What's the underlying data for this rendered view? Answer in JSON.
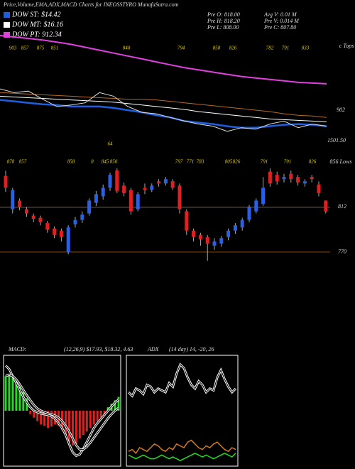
{
  "header": {
    "title": "Price,Volume,EMA,ADX,MACD Charts for INEOSSTYRO MunafaSutra.com"
  },
  "legend": [
    {
      "label": "DOW ST: $14.42",
      "color": "#1e5fe0"
    },
    {
      "label": "DOW MT: $16.16",
      "color": "#ffffff"
    },
    {
      "label": "DOW PT: 912.34",
      "color": "#e040e0"
    }
  ],
  "stats": [
    "Pre  O: 818.00",
    "Avg V: 0.01 M",
    "Pre  H: 818.20",
    "Pre  V: 0.014 M",
    "Pre  L: 808.00",
    "Pre  C: 807.80"
  ],
  "chart_data": [
    {
      "type": "line",
      "ylim": [
        760,
        930
      ],
      "annotations": [
        "903",
        "857",
        "875",
        "851",
        "840",
        "794",
        "858",
        "826",
        "782",
        "791",
        "833",
        "64",
        "902",
        "1501.50",
        "c Tops"
      ],
      "series": [
        {
          "color": "#e040e0",
          "width": 2,
          "values": [
            930,
            928,
            926,
            924,
            921,
            918,
            914,
            910,
            906,
            902,
            898,
            894,
            890,
            886,
            883,
            880,
            877,
            874,
            872,
            870,
            868,
            866,
            865,
            864
          ]
        },
        {
          "color": "#b86a1e",
          "width": 1,
          "values": [
            852,
            851,
            850,
            849,
            848,
            847,
            846,
            845,
            844,
            843,
            843,
            842,
            840,
            838,
            836,
            834,
            832,
            830,
            828,
            826,
            823,
            821,
            820,
            818
          ]
        },
        {
          "color": "#ffffff",
          "width": 1,
          "values": [
            847,
            846,
            845,
            844,
            843,
            842,
            841,
            840,
            839,
            837,
            835,
            833,
            831,
            829,
            826,
            824,
            822,
            820,
            818,
            816,
            815,
            814,
            813,
            812
          ]
        },
        {
          "color": "#1e5fe0",
          "width": 2.5,
          "values": [
            842,
            840,
            838,
            836,
            835,
            833,
            833,
            833,
            831,
            828,
            825,
            821,
            818,
            813,
            811,
            809,
            806,
            804,
            804,
            806,
            808,
            809,
            808,
            806
          ]
        },
        {
          "color": "#dddddd",
          "width": 1,
          "values": [
            857,
            852,
            854,
            843,
            833,
            835,
            838,
            852,
            847,
            833,
            825,
            823,
            818,
            813,
            809,
            806,
            799,
            804,
            802,
            809,
            813,
            804,
            809,
            806
          ]
        }
      ]
    },
    {
      "type": "candlestick",
      "ylim": [
        750,
        856
      ],
      "yticks": [
        812,
        770
      ],
      "up_color": "#2a5fe8",
      "down_color": "#e02020",
      "annotations": [
        "878",
        "857",
        "858",
        "8",
        "845",
        "850",
        "797",
        "771",
        "783",
        "805",
        "826",
        "791",
        "791",
        "826",
        "856 Lows"
      ],
      "open": [
        841,
        810,
        818,
        810,
        804,
        802,
        797,
        792,
        790,
        770,
        796,
        800,
        806,
        816,
        822,
        830,
        846,
        832,
        828,
        810,
        830,
        828,
        836,
        834,
        836,
        832,
        808,
        790,
        786,
        784,
        776,
        778,
        784,
        790,
        793,
        800,
        808,
        815,
        845,
        842,
        838,
        843,
        840,
        834,
        840,
        833,
        818
      ],
      "high": [
        846,
        830,
        820,
        812,
        806,
        804,
        799,
        794,
        792,
        795,
        803,
        808,
        820,
        827,
        833,
        844,
        848,
        835,
        830,
        826,
        834,
        834,
        838,
        840,
        838,
        834,
        810,
        792,
        788,
        786,
        783,
        785,
        792,
        797,
        802,
        814,
        820,
        840,
        848,
        845,
        843,
        846,
        842,
        838,
        842,
        836,
        818.2
      ],
      "low": [
        826,
        806,
        809,
        803,
        798,
        795,
        788,
        783,
        780,
        768,
        793,
        797,
        804,
        813,
        819,
        827,
        825,
        822,
        805,
        808,
        824,
        826,
        831,
        832,
        828,
        806,
        786,
        780,
        776,
        762,
        772,
        775,
        781,
        787,
        790,
        798,
        806,
        813,
        831,
        833,
        835,
        835,
        832,
        831,
        835,
        822,
        806
      ],
      "close": [
        830,
        828,
        812,
        806,
        801,
        798,
        791,
        786,
        784,
        793,
        800,
        805,
        818,
        824,
        830,
        842,
        827,
        825,
        808,
        824,
        828,
        832,
        834,
        838,
        830,
        810,
        790,
        784,
        782,
        778,
        780,
        783,
        790,
        795,
        800,
        812,
        818,
        830,
        834,
        836,
        840,
        838,
        835,
        836,
        838,
        825,
        807.8
      ]
    },
    {
      "type": "macd",
      "title": "MACD:",
      "subtitle": "(12,26,9) $17.93, $18.32, 4.63",
      "ylim": [
        -8,
        8
      ],
      "histogram": [
        5,
        5.2,
        4.8,
        4,
        3.5,
        2.8,
        1.8,
        -0.5,
        -1,
        -1.5,
        -2,
        -2.2,
        -2.5,
        -2.3,
        -2,
        -2.2,
        -2.8,
        -3.5,
        -4.5,
        -5,
        -4.8,
        -4,
        -3.5,
        -3,
        -2.5,
        -2,
        -1.5,
        -1,
        -0.5,
        0.5,
        1,
        1.5,
        2
      ],
      "macd": [
        6.5,
        6,
        5,
        4,
        3,
        2,
        1.2,
        0.5,
        0,
        -0.2,
        -0.4,
        -0.5,
        -0.6,
        -0.8,
        -1.2,
        -1.8,
        -2.5,
        -3.5,
        -4.8,
        -6,
        -6.5,
        -6.3,
        -5.5,
        -4.5,
        -3.5,
        -2.5,
        -1.8,
        -1.2,
        -0.6,
        0,
        0.6,
        1.2,
        1.6
      ],
      "signal": [
        5,
        5.2,
        5,
        4.5,
        3.8,
        3,
        2.2,
        1.5,
        0.8,
        0.3,
        0,
        -0.2,
        -0.4,
        -0.5,
        -0.7,
        -1,
        -1.5,
        -2.2,
        -3,
        -4,
        -5,
        -5.6,
        -5.6,
        -5.2,
        -4.6,
        -3.9,
        -3.2,
        -2.5,
        -1.8,
        -1.1,
        -0.5,
        0,
        0.4
      ],
      "up_color": "#22dd22",
      "down_color": "#e02020",
      "line_color": "#ffffff"
    },
    {
      "type": "adx",
      "title": "ADX",
      "subtitle": "(14 day) 14, -20, 26",
      "ylim": [
        0,
        60
      ],
      "series": [
        {
          "color": "#ffffff",
          "values": [
            40,
            38,
            42,
            41,
            39,
            44,
            43,
            40,
            42,
            41,
            40,
            45,
            43,
            50,
            55,
            53,
            48,
            44,
            42,
            46,
            44,
            40,
            42,
            41,
            48,
            52,
            47,
            43,
            40,
            42
          ]
        },
        {
          "color": "#d07a20",
          "values": [
            8,
            9,
            7,
            10,
            9,
            8,
            10,
            12,
            11,
            9,
            8,
            10,
            9,
            12,
            11,
            10,
            13,
            14,
            12,
            10,
            9,
            11,
            10,
            12,
            13,
            11,
            9,
            8,
            10,
            9
          ]
        },
        {
          "color": "#22dd22",
          "values": [
            6,
            5,
            4,
            5,
            6,
            5,
            4,
            4,
            5,
            6,
            5,
            4,
            5,
            4,
            3,
            4,
            5,
            6,
            7,
            6,
            5,
            6,
            5,
            4,
            5,
            6,
            7,
            6,
            5,
            7
          ]
        }
      ]
    }
  ]
}
